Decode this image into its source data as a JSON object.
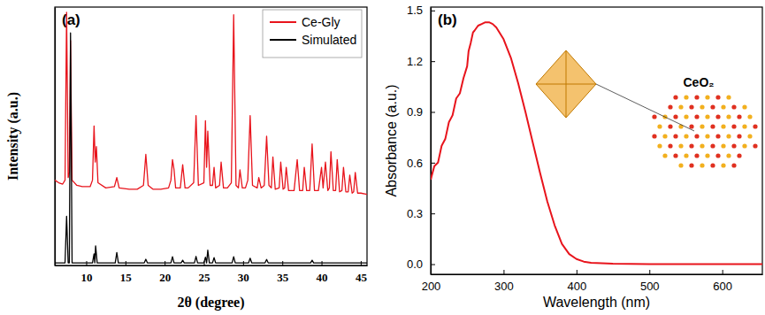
{
  "chart_data": [
    {
      "type": "line",
      "title": "(a)",
      "xlabel": "2θ (degree)",
      "ylabel": "Intensity (a.u.)",
      "xlim": [
        6,
        45.8
      ],
      "xticks": [
        10,
        15,
        20,
        25,
        30,
        35,
        40,
        45
      ],
      "ylim": [
        0,
        100
      ],
      "tick_labels": "x",
      "legend": "upper right",
      "series": [
        {
          "name": "Ce-Gly",
          "color": "#e8141c",
          "x": [
            6.0,
            6.5,
            7.0,
            7.3,
            7.5,
            7.7,
            7.85,
            8.0,
            8.2,
            8.8,
            9.5,
            10.5,
            10.8,
            11.0,
            11.15,
            11.3,
            11.5,
            12.5,
            13.6,
            13.9,
            14.2,
            15.5,
            16.5,
            17.3,
            17.6,
            17.9,
            18.5,
            19.5,
            20.5,
            20.8,
            21.0,
            21.2,
            21.4,
            22.0,
            22.3,
            22.6,
            23.0,
            23.7,
            24.0,
            24.3,
            25.0,
            25.2,
            25.35,
            25.5,
            25.8,
            26.1,
            26.3,
            26.5,
            27.0,
            27.2,
            27.5,
            28.0,
            28.5,
            28.8,
            29.1,
            29.4,
            29.6,
            29.9,
            30.3,
            30.6,
            30.9,
            31.2,
            31.8,
            32.0,
            32.3,
            32.7,
            33.0,
            33.3,
            33.6,
            33.8,
            34.1,
            34.6,
            34.8,
            35.1,
            35.3,
            35.5,
            35.8,
            36.5,
            36.9,
            37.2,
            37.6,
            37.8,
            38.1,
            38.5,
            38.8,
            39.1,
            39.6,
            40.0,
            40.2,
            40.5,
            40.8,
            41.0,
            41.2,
            41.5,
            41.8,
            42.0,
            42.3,
            42.6,
            42.8,
            43.1,
            43.4,
            43.6,
            43.9,
            44.1,
            44.3,
            44.6,
            45.0,
            45.8
          ],
          "values": [
            33,
            32,
            31.5,
            33,
            98,
            34,
            36,
            87,
            33,
            31,
            30.5,
            30.5,
            33,
            54,
            40,
            46,
            32,
            30,
            30.5,
            34,
            30,
            29.5,
            29.5,
            31,
            43,
            31,
            29.5,
            29.5,
            30,
            33,
            41,
            37,
            30,
            30,
            39,
            30,
            30,
            32,
            58,
            31,
            32,
            56,
            38,
            52,
            31,
            31,
            38,
            30,
            31,
            40,
            30,
            30,
            32,
            97,
            31,
            30,
            37,
            30,
            30,
            33,
            58,
            31,
            30,
            34,
            30,
            31,
            50,
            31,
            30,
            42,
            29.5,
            30,
            40,
            29.5,
            30,
            38,
            29,
            29,
            41,
            29,
            29,
            38,
            29,
            29,
            47,
            29,
            29,
            38,
            30,
            40,
            29,
            30,
            44,
            29,
            29,
            41,
            28.5,
            29,
            38,
            28.5,
            28.5,
            35,
            28,
            28.5,
            36,
            28,
            28,
            27.5
          ]
        },
        {
          "name": "Simulated",
          "color": "#000000",
          "x": [
            6.0,
            7.3,
            7.5,
            7.7,
            7.85,
            8.0,
            8.2,
            10.8,
            11.0,
            11.1,
            11.2,
            11.4,
            13.7,
            13.9,
            14.1,
            17.4,
            17.6,
            17.8,
            20.8,
            21.0,
            21.2,
            22.1,
            22.3,
            22.5,
            23.8,
            24.0,
            24.2,
            25.0,
            25.2,
            25.35,
            25.5,
            25.7,
            26.1,
            26.3,
            26.5,
            28.6,
            28.8,
            29.0,
            30.7,
            30.9,
            31.1,
            32.8,
            33.0,
            33.2,
            38.6,
            38.8,
            39.0,
            45.8
          ],
          "values": [
            1,
            1,
            19,
            1,
            1,
            90,
            1,
            1,
            4.5,
            1,
            7.6,
            1,
            1,
            5,
            1,
            1,
            2.4,
            1,
            1,
            3.4,
            1,
            1,
            2,
            1,
            1,
            3.5,
            1,
            1,
            3.2,
            1,
            5.9,
            1,
            1,
            3,
            1,
            1,
            3.4,
            1,
            1,
            2.8,
            1,
            1,
            2.3,
            1,
            1,
            2,
            1,
            1
          ]
        }
      ]
    },
    {
      "type": "line",
      "title": "(b)",
      "xlabel": "Wavelength (nm)",
      "ylabel": "Absorbance (a.u.)",
      "xlim": [
        200,
        655
      ],
      "xticks": [
        200,
        300,
        400,
        500,
        600
      ],
      "ylim": [
        -0.06,
        1.52
      ],
      "yticks": [
        {
          "value": 0,
          "label": "0.0"
        },
        0.3,
        0.6,
        0.9,
        1.2,
        1.5
      ],
      "annotations": [
        {
          "text": "CeO₂"
        }
      ],
      "x": [
        200,
        205,
        210,
        215,
        220,
        225,
        230,
        235,
        240,
        245,
        250,
        252,
        255,
        258,
        260,
        265,
        270,
        275,
        280,
        285,
        290,
        300,
        310,
        320,
        330,
        340,
        350,
        360,
        370,
        380,
        390,
        400,
        410,
        420,
        450,
        500,
        600,
        655
      ],
      "series": [
        {
          "color": "#e8141c",
          "values": [
            0.5,
            0.58,
            0.6,
            0.7,
            0.74,
            0.84,
            0.88,
            0.98,
            1.01,
            1.1,
            1.17,
            1.26,
            1.31,
            1.37,
            1.38,
            1.41,
            1.42,
            1.43,
            1.43,
            1.42,
            1.4,
            1.33,
            1.22,
            1.07,
            0.9,
            0.72,
            0.54,
            0.37,
            0.23,
            0.12,
            0.06,
            0.03,
            0.015,
            0.008,
            0.003,
            0,
            0,
            0
          ]
        }
      ]
    }
  ]
}
